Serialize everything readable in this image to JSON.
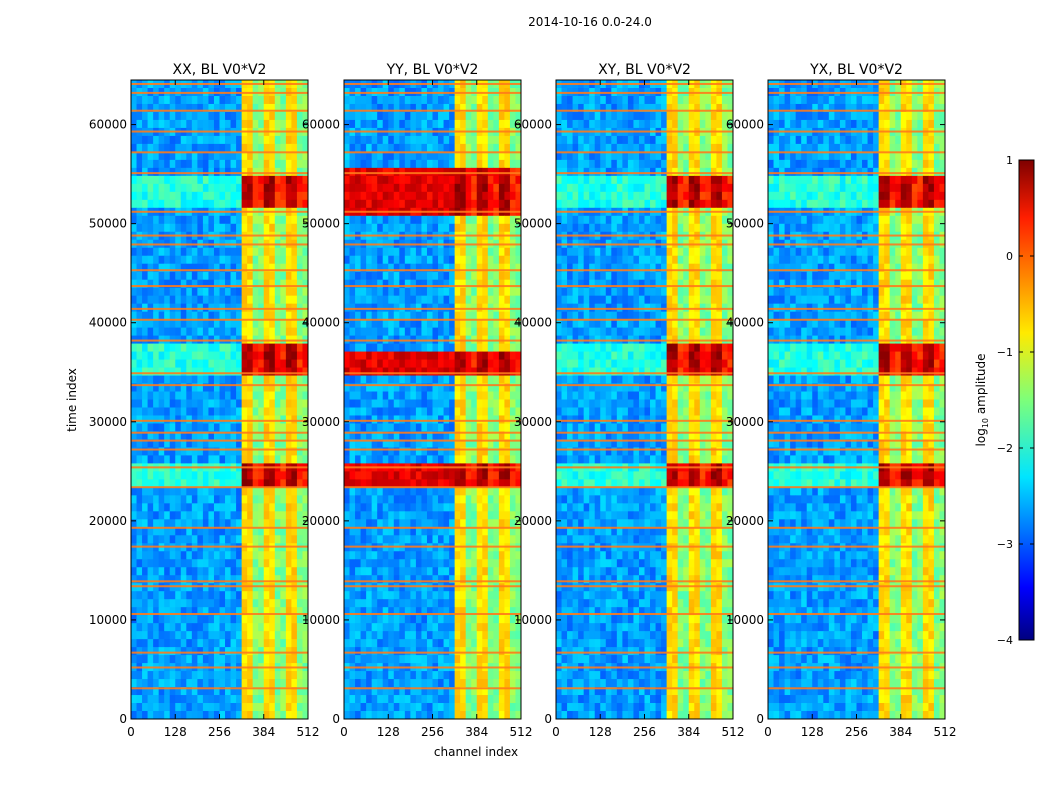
{
  "figure": {
    "suptitle": "2014-10-16 0.0-24.0",
    "xlabel": "channel index",
    "ylabel": "time index",
    "colorbar": {
      "label_prefix": "log",
      "label_sub": "10",
      "label_suffix": " amplitude",
      "min": -4,
      "max": 1,
      "ticks": [
        -4,
        -3,
        -2,
        -1,
        0,
        1
      ],
      "tick_labels": [
        "−4",
        "−3",
        "−2",
        "−1",
        "0",
        "1"
      ],
      "colormap": "jet"
    }
  },
  "chart_data": [
    {
      "type": "heatmap",
      "title": "XX, BL V0*V2",
      "xlabel": "channel index",
      "ylabel": "time index",
      "xlim": [
        0,
        512
      ],
      "ylim": [
        0,
        64500
      ],
      "xticks": [
        0,
        128,
        256,
        384,
        512
      ],
      "yticks": [
        0,
        10000,
        20000,
        30000,
        40000,
        50000,
        60000
      ],
      "bright_channel_band": [
        325,
        512
      ],
      "strong_time_bands": [
        [
          23000,
          26000
        ],
        [
          34500,
          38000
        ],
        [
          51500,
          55000
        ]
      ]
    },
    {
      "type": "heatmap",
      "title": "YY, BL V0*V2",
      "xlabel": "channel index",
      "ylabel": "time index",
      "xlim": [
        0,
        512
      ],
      "ylim": [
        0,
        64500
      ],
      "xticks": [
        0,
        128,
        256,
        384,
        512
      ],
      "yticks": [
        0,
        10000,
        20000,
        30000,
        40000,
        50000,
        60000
      ],
      "bright_channel_band": [
        325,
        512
      ],
      "strong_time_bands": [
        [
          23500,
          26000
        ],
        [
          35000,
          37000
        ],
        [
          51000,
          56000
        ]
      ]
    },
    {
      "type": "heatmap",
      "title": "XY, BL V0*V2",
      "xlabel": "channel index",
      "ylabel": "time index",
      "xlim": [
        0,
        512
      ],
      "ylim": [
        0,
        64500
      ],
      "xticks": [
        0,
        128,
        256,
        384,
        512
      ],
      "yticks": [
        0,
        10000,
        20000,
        30000,
        40000,
        50000,
        60000
      ],
      "bright_channel_band": [
        325,
        512
      ],
      "strong_time_bands": [
        [
          23000,
          26000
        ],
        [
          34500,
          38000
        ],
        [
          51500,
          55000
        ]
      ]
    },
    {
      "type": "heatmap",
      "title": "YX, BL V0*V2",
      "xlabel": "channel index",
      "ylabel": "time index",
      "xlim": [
        0,
        512
      ],
      "ylim": [
        0,
        64500
      ],
      "xticks": [
        0,
        128,
        256,
        384,
        512
      ],
      "yticks": [
        0,
        10000,
        20000,
        30000,
        40000,
        50000,
        60000
      ],
      "bright_channel_band": [
        325,
        512
      ],
      "strong_time_bands": [
        [
          23000,
          26000
        ],
        [
          34500,
          38000
        ],
        [
          51500,
          55000
        ]
      ]
    }
  ]
}
